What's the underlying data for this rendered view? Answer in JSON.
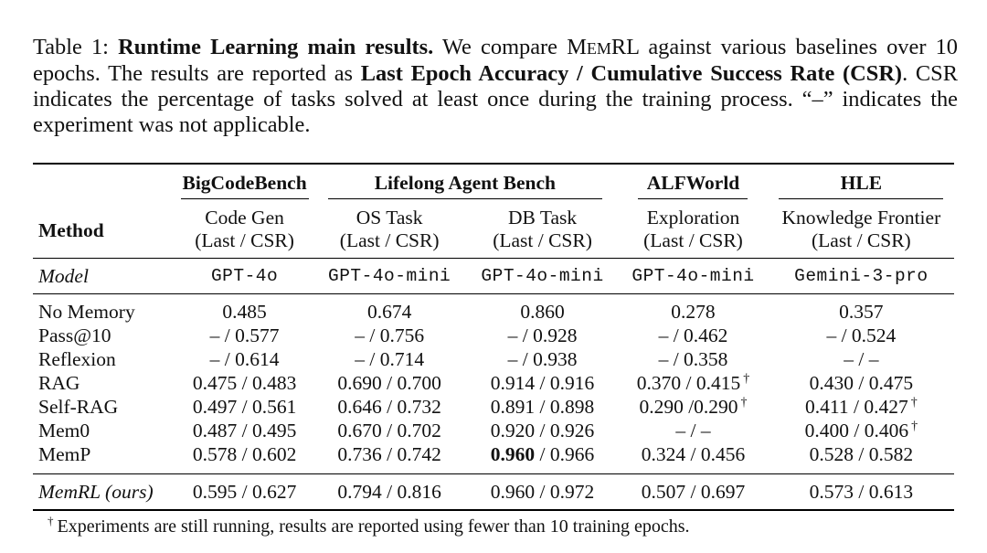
{
  "caption": {
    "label": "Table 1:",
    "title": "Runtime Learning main results.",
    "text_1": "We compare",
    "system_name_initial_1": "M",
    "system_name_small": "EM",
    "system_name_rest": "RL",
    "text_2": "against various baselines over 10 epochs. The results are reported as",
    "bold_metric": "Last Epoch Accuracy / Cumulative Success Rate (CSR)",
    "text_3": ". CSR indicates the percentage of tasks solved at least once during the training process. “–” indicates the experiment was not applicable."
  },
  "table": {
    "method_header": "Method",
    "benchmarks": [
      {
        "name": "BigCodeBench",
        "span": 1
      },
      {
        "name": "Lifelong Agent Bench",
        "span": 2
      },
      {
        "name": "ALFWorld",
        "span": 1
      },
      {
        "name": "HLE",
        "span": 1
      }
    ],
    "tasks": [
      {
        "name": "Code Gen",
        "metric": "(Last / CSR)"
      },
      {
        "name": "OS Task",
        "metric": "(Last / CSR)"
      },
      {
        "name": "DB Task",
        "metric": "(Last / CSR)"
      },
      {
        "name": "Exploration",
        "metric": "(Last / CSR)"
      },
      {
        "name": "Knowledge Frontier",
        "metric": "(Last / CSR)"
      }
    ],
    "model_label": "Model",
    "models": [
      "GPT-4o",
      "GPT-4o-mini",
      "GPT-4o-mini",
      "GPT-4o-mini",
      "Gemini-3-pro"
    ],
    "rows": [
      {
        "method": "No Memory",
        "cells": [
          "0.485",
          "0.674",
          "0.860",
          "0.278",
          "0.357"
        ]
      },
      {
        "method": "Pass@10",
        "cells": [
          "– / 0.577",
          "– / 0.756",
          "– / 0.928",
          "– / 0.462",
          "– / 0.524"
        ]
      },
      {
        "method": "Reflexion",
        "cells": [
          "– / 0.614",
          "– / 0.714",
          "– / 0.938",
          "– / 0.358",
          "– / –"
        ]
      },
      {
        "method": "RAG",
        "cells": [
          "0.475 / 0.483",
          "0.690 / 0.700",
          "0.914 / 0.916",
          "0.370 / 0.415",
          "0.430 / 0.475"
        ]
      },
      {
        "method": "Self-RAG",
        "cells": [
          "0.497 / 0.561",
          "0.646 / 0.732",
          "0.891 / 0.898",
          "0.290 /0.290",
          "0.411 / 0.427"
        ]
      },
      {
        "method": "Mem0",
        "cells": [
          "0.487 / 0.495",
          "0.670 / 0.702",
          "0.920 / 0.926",
          "– / –",
          "0.400 / 0.406"
        ]
      },
      {
        "method": "MemP",
        "cells": [
          "0.578 / 0.602",
          "0.736 / 0.742",
          "0.960",
          "0.324 / 0.456",
          "0.528 / 0.582"
        ],
        "db_rest": " / 0.966"
      }
    ],
    "final_row": {
      "method": "MemRL (ours)",
      "cells": [
        "0.595 / 0.627",
        "0.794 / 0.816",
        "0.960 / 0.972",
        "0.507 / 0.697",
        "0.573 / 0.613"
      ]
    },
    "dagger": "†"
  },
  "footnote": {
    "marker": "†",
    "text": "Experiments are still running, results are reported using fewer than 10 training epochs."
  }
}
